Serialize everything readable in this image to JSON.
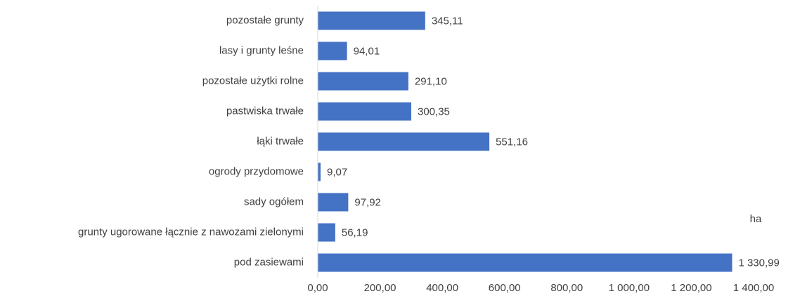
{
  "chart_data": {
    "type": "barh",
    "categories": [
      "pozostałe grunty",
      "lasy i grunty leśne",
      "pozostałe użytki rolne",
      "pastwiska trwałe",
      "łąki trwałe",
      "ogrody przydomowe",
      "sady ogółem",
      "grunty ugorowane łącznie z nawozami zielonymi",
      "pod zasiewami"
    ],
    "values": [
      345.11,
      94.01,
      291.1,
      300.35,
      551.16,
      9.07,
      97.92,
      56.19,
      1330.99
    ],
    "value_labels": [
      "345,11",
      "94,01",
      "291,10",
      "300,35",
      "551,16",
      "9,07",
      "97,92",
      "56,19",
      "1 330,99"
    ],
    "color": "#4472c4",
    "xlim": [
      0,
      1400
    ],
    "xticks": [
      {
        "value": 0,
        "label": "0,00"
      },
      {
        "value": 200,
        "label": "200,00"
      },
      {
        "value": 400,
        "label": "400,00"
      },
      {
        "value": 600,
        "label": "600,00"
      },
      {
        "value": 800,
        "label": "800,00"
      },
      {
        "value": 1000,
        "label": "1 000,00"
      },
      {
        "value": 1200,
        "label": "1 200,00"
      },
      {
        "value": 1400,
        "label": "1 400,00"
      }
    ],
    "x_label": "ha",
    "grid": false
  }
}
